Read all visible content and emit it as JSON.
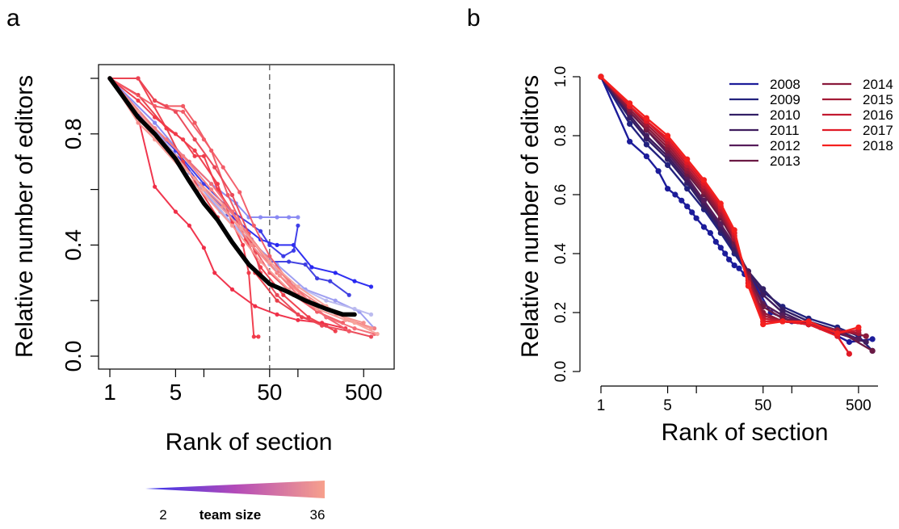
{
  "chart_data": [
    {
      "panel_label": "a",
      "type": "line",
      "xlabel": "Rank of section",
      "ylabel": "Relative number of editors",
      "x_scale": "log",
      "xlim": [
        1,
        800
      ],
      "ylim": [
        0,
        1
      ],
      "x_ticks": [
        1,
        5,
        50,
        500
      ],
      "x_minor_ticks": [
        10,
        100
      ],
      "y_ticks": [
        0.0,
        0.4,
        0.8
      ],
      "y_minor_ticks": [
        0.2,
        0.6,
        1.0
      ],
      "x_tick_labels": [
        "1",
        "5",
        "50",
        "500"
      ],
      "y_tick_labels": [
        "0.0",
        "0.4",
        "0.8"
      ],
      "reference_line": {
        "x": 50,
        "style": "dashed",
        "color": "#555555"
      },
      "grid": false,
      "colorbar": {
        "label": "team size",
        "min_label": "2",
        "max_label": "36",
        "min_color": "#3333ee",
        "mid_color": "#b34ab8",
        "max_color": "#f7a08c"
      },
      "average": {
        "color": "#000000",
        "x": [
          1,
          2,
          3,
          5,
          7,
          10,
          14,
          20,
          30,
          50,
          80,
          120,
          200,
          300,
          400
        ],
        "y": [
          1.0,
          0.86,
          0.8,
          0.71,
          0.63,
          0.55,
          0.49,
          0.41,
          0.33,
          0.26,
          0.23,
          0.2,
          0.17,
          0.15,
          0.15
        ]
      },
      "series": [
        {
          "team_size": 2,
          "color": "#2525f0",
          "x": [
            1,
            3,
            6,
            10,
            20,
            40,
            60,
            90,
            140,
            250,
            400,
            600
          ],
          "y": [
            1.0,
            0.8,
            0.7,
            0.6,
            0.5,
            0.42,
            0.4,
            0.4,
            0.32,
            0.3,
            0.27,
            0.25
          ]
        },
        {
          "team_size": 3,
          "color": "#8888f2",
          "x": [
            1,
            3,
            6,
            12,
            22,
            30,
            40,
            60,
            80,
            100
          ],
          "y": [
            1.0,
            0.84,
            0.72,
            0.62,
            0.55,
            0.5,
            0.5,
            0.5,
            0.5,
            0.5
          ]
        },
        {
          "team_size": 4,
          "color": "#3838e8",
          "x": [
            1,
            3,
            5,
            10,
            20,
            40,
            50,
            70,
            90,
            100
          ],
          "y": [
            1.0,
            0.82,
            0.74,
            0.62,
            0.52,
            0.45,
            0.4,
            0.36,
            0.38,
            0.47
          ]
        },
        {
          "team_size": 5,
          "color": "#3a3ae0",
          "x": [
            1,
            4,
            9,
            18,
            32,
            50,
            80,
            120,
            160,
            220,
            350
          ],
          "y": [
            1.0,
            0.76,
            0.62,
            0.51,
            0.42,
            0.34,
            0.34,
            0.33,
            0.28,
            0.27,
            0.22
          ]
        },
        {
          "team_size": 6,
          "color": "#9a9af0",
          "x": [
            1,
            3,
            7,
            15,
            30,
            60,
            120,
            250,
            450,
            650
          ],
          "y": [
            1.0,
            0.82,
            0.66,
            0.52,
            0.42,
            0.33,
            0.24,
            0.2,
            0.16,
            0.1
          ]
        },
        {
          "team_size": 8,
          "color": "#b8b8ee",
          "x": [
            1,
            4,
            10,
            22,
            50,
            100,
            200,
            400,
            600
          ],
          "y": [
            1.0,
            0.76,
            0.6,
            0.46,
            0.33,
            0.25,
            0.2,
            0.17,
            0.15
          ]
        },
        {
          "team_size": 14,
          "color": "#ef2b45",
          "x": [
            1,
            2,
            3,
            5,
            7,
            10,
            13,
            20,
            35,
            60,
            100,
            180,
            320
          ],
          "y": [
            1.0,
            0.86,
            0.61,
            0.52,
            0.47,
            0.39,
            0.3,
            0.24,
            0.18,
            0.15,
            0.13,
            0.12,
            0.1
          ]
        },
        {
          "team_size": 16,
          "color": "#e83a46",
          "x": [
            1,
            2,
            4,
            6,
            9,
            14,
            22,
            35,
            60,
            110,
            200
          ],
          "y": [
            1.0,
            0.94,
            0.82,
            0.7,
            0.6,
            0.5,
            0.39,
            0.3,
            0.2,
            0.14,
            0.11
          ]
        },
        {
          "team_size": 18,
          "color": "#f05560",
          "x": [
            1,
            2,
            3,
            4,
            6,
            8,
            12,
            18,
            30,
            50,
            90,
            160,
            300
          ],
          "y": [
            1.0,
            1.0,
            0.92,
            0.9,
            0.9,
            0.84,
            0.74,
            0.58,
            0.42,
            0.3,
            0.22,
            0.16,
            0.12
          ]
        },
        {
          "team_size": 20,
          "color": "#ef3a48",
          "x": [
            1,
            2,
            4,
            6,
            8,
            10,
            14,
            20,
            28,
            40,
            70,
            130,
            250
          ],
          "y": [
            1.0,
            1.0,
            0.82,
            0.78,
            0.72,
            0.72,
            0.6,
            0.52,
            0.42,
            0.32,
            0.22,
            0.14,
            0.09
          ]
        },
        {
          "team_size": 22,
          "color": "#ea4454",
          "x": [
            1,
            2,
            3,
            5,
            8,
            13,
            20,
            30,
            35,
            40,
            60,
            100,
            180,
            350,
            600
          ],
          "y": [
            1.0,
            1.0,
            0.92,
            0.88,
            0.78,
            0.68,
            0.58,
            0.44,
            0.37,
            0.3,
            0.22,
            0.15,
            0.11,
            0.09,
            0.07
          ]
        },
        {
          "team_size": 24,
          "color": "#f03848",
          "x": [
            1,
            2,
            3,
            5,
            8,
            14,
            20,
            26,
            30,
            34,
            38
          ],
          "y": [
            1.0,
            0.92,
            0.86,
            0.8,
            0.74,
            0.62,
            0.48,
            0.4,
            0.3,
            0.07,
            0.07
          ]
        },
        {
          "team_size": 26,
          "color": "#f25a66",
          "x": [
            1,
            3,
            6,
            10,
            16,
            24,
            34,
            50,
            80,
            130,
            200,
            350
          ],
          "y": [
            1.0,
            0.9,
            0.88,
            0.78,
            0.68,
            0.59,
            0.47,
            0.36,
            0.27,
            0.2,
            0.14,
            0.09
          ]
        },
        {
          "team_size": 28,
          "color": "#f36b75",
          "x": [
            1,
            2,
            4,
            7,
            12,
            20,
            35,
            60,
            100,
            200,
            400,
            650
          ],
          "y": [
            1.0,
            0.88,
            0.78,
            0.7,
            0.62,
            0.52,
            0.4,
            0.3,
            0.22,
            0.14,
            0.1,
            0.08
          ]
        },
        {
          "team_size": 30,
          "color": "#f47e80",
          "x": [
            1,
            3,
            6,
            12,
            24,
            45,
            90,
            180,
            350,
            650
          ],
          "y": [
            1.0,
            0.82,
            0.72,
            0.6,
            0.48,
            0.36,
            0.25,
            0.18,
            0.13,
            0.1
          ]
        },
        {
          "team_size": 32,
          "color": "#f58c8a",
          "x": [
            1,
            2,
            4,
            8,
            16,
            32,
            64,
            128,
            256,
            500
          ],
          "y": [
            1.0,
            0.84,
            0.74,
            0.64,
            0.54,
            0.4,
            0.29,
            0.2,
            0.15,
            0.12
          ]
        },
        {
          "team_size": 34,
          "color": "#f79a95",
          "x": [
            1,
            3,
            9,
            20,
            40,
            80,
            160,
            320,
            600
          ],
          "y": [
            1.0,
            0.78,
            0.6,
            0.47,
            0.34,
            0.24,
            0.17,
            0.13,
            0.1
          ]
        },
        {
          "team_size": 36,
          "color": "#f7a39b",
          "x": [
            1,
            2,
            5,
            10,
            25,
            50,
            100,
            200,
            400,
            700
          ],
          "y": [
            1.0,
            0.88,
            0.72,
            0.6,
            0.46,
            0.34,
            0.25,
            0.18,
            0.12,
            0.08
          ]
        }
      ]
    },
    {
      "panel_label": "b",
      "type": "line",
      "xlabel": "Rank of section",
      "ylabel": "Relative number of editors",
      "x_scale": "log",
      "xlim": [
        1,
        800
      ],
      "ylim": [
        0,
        1
      ],
      "x_ticks": [
        1,
        5,
        50,
        500
      ],
      "x_minor_ticks": [
        10,
        100
      ],
      "y_ticks": [
        0.0,
        0.2,
        0.4,
        0.6,
        0.8,
        1.0
      ],
      "x_tick_labels": [
        "1",
        "5",
        "50",
        "500"
      ],
      "y_tick_labels": [
        "0.0",
        "0.2",
        "0.4",
        "0.6",
        "0.8",
        "1.0"
      ],
      "grid": false,
      "legend_position": "top-right",
      "legend_columns": [
        [
          "2008",
          "2009",
          "2010",
          "2011",
          "2012",
          "2013"
        ],
        [
          "2014",
          "2015",
          "2016",
          "2017",
          "2018"
        ]
      ],
      "series": [
        {
          "name": "2008",
          "color": "#1c1c9a",
          "x": [
            1,
            2,
            3,
            4,
            5,
            6,
            7,
            8,
            9,
            10,
            12,
            14,
            16,
            18,
            20,
            22,
            25,
            28,
            32,
            40,
            60,
            100,
            200,
            400,
            700
          ],
          "y": [
            1.0,
            0.78,
            0.73,
            0.68,
            0.62,
            0.6,
            0.58,
            0.56,
            0.54,
            0.52,
            0.49,
            0.47,
            0.44,
            0.42,
            0.4,
            0.38,
            0.36,
            0.35,
            0.33,
            0.3,
            0.2,
            0.17,
            0.15,
            0.1,
            0.11
          ]
        },
        {
          "name": "2009",
          "color": "#22227e",
          "x": [
            1,
            2,
            3,
            5,
            8,
            12,
            18,
            25,
            35,
            50,
            80,
            150,
            300,
            500,
            700
          ],
          "y": [
            1.0,
            0.84,
            0.77,
            0.7,
            0.62,
            0.55,
            0.47,
            0.4,
            0.33,
            0.27,
            0.22,
            0.18,
            0.15,
            0.12,
            0.07
          ]
        },
        {
          "name": "2010",
          "color": "#321f66",
          "x": [
            1,
            2,
            3,
            5,
            8,
            12,
            18,
            25,
            35,
            50,
            80,
            150,
            300,
            500
          ],
          "y": [
            1.0,
            0.86,
            0.79,
            0.72,
            0.64,
            0.56,
            0.48,
            0.41,
            0.34,
            0.28,
            0.21,
            0.17,
            0.14,
            0.11
          ]
        },
        {
          "name": "2011",
          "color": "#3f1c5e",
          "x": [
            1,
            2,
            3,
            5,
            8,
            12,
            18,
            25,
            35,
            50,
            80,
            150,
            300,
            600
          ],
          "y": [
            1.0,
            0.87,
            0.8,
            0.73,
            0.65,
            0.57,
            0.49,
            0.42,
            0.34,
            0.26,
            0.2,
            0.16,
            0.13,
            0.1
          ]
        },
        {
          "name": "2012",
          "color": "#561c5a",
          "x": [
            1,
            2,
            3,
            5,
            8,
            12,
            18,
            25,
            35,
            50,
            80,
            150,
            300,
            500
          ],
          "y": [
            1.0,
            0.88,
            0.82,
            0.74,
            0.66,
            0.58,
            0.5,
            0.43,
            0.33,
            0.23,
            0.19,
            0.16,
            0.13,
            0.11
          ]
        },
        {
          "name": "2013",
          "color": "#6b1a44",
          "x": [
            1,
            2,
            3,
            5,
            8,
            12,
            18,
            25,
            35,
            50,
            80,
            150,
            300,
            700
          ],
          "y": [
            1.0,
            0.88,
            0.82,
            0.75,
            0.67,
            0.6,
            0.52,
            0.44,
            0.33,
            0.22,
            0.18,
            0.16,
            0.14,
            0.07
          ]
        },
        {
          "name": "2014",
          "color": "#8a1a3c",
          "x": [
            1,
            2,
            3,
            5,
            8,
            12,
            18,
            25,
            35,
            50,
            80,
            150,
            300,
            600
          ],
          "y": [
            1.0,
            0.89,
            0.83,
            0.76,
            0.68,
            0.61,
            0.53,
            0.45,
            0.32,
            0.2,
            0.17,
            0.16,
            0.14,
            0.12
          ]
        },
        {
          "name": "2015",
          "color": "#a31a36",
          "x": [
            1,
            2,
            3,
            5,
            8,
            12,
            18,
            25,
            35,
            50,
            80,
            150,
            300,
            500
          ],
          "y": [
            1.0,
            0.9,
            0.84,
            0.77,
            0.69,
            0.62,
            0.54,
            0.45,
            0.31,
            0.19,
            0.17,
            0.16,
            0.14,
            0.13
          ]
        },
        {
          "name": "2016",
          "color": "#c21a30",
          "x": [
            1,
            2,
            3,
            5,
            8,
            12,
            18,
            25,
            35,
            50,
            80,
            150,
            300,
            500
          ],
          "y": [
            1.0,
            0.9,
            0.85,
            0.78,
            0.7,
            0.63,
            0.55,
            0.46,
            0.3,
            0.18,
            0.17,
            0.16,
            0.13,
            0.14
          ]
        },
        {
          "name": "2017",
          "color": "#e01a26",
          "x": [
            1,
            2,
            3,
            5,
            8,
            12,
            18,
            25,
            35,
            50,
            80,
            150,
            300,
            400
          ],
          "y": [
            1.0,
            0.9,
            0.85,
            0.79,
            0.71,
            0.64,
            0.56,
            0.47,
            0.3,
            0.17,
            0.17,
            0.16,
            0.12,
            0.06
          ]
        },
        {
          "name": "2018",
          "color": "#f5201e",
          "x": [
            1,
            2,
            3,
            5,
            8,
            12,
            18,
            25,
            35,
            50,
            80,
            150,
            300,
            500
          ],
          "y": [
            1.0,
            0.91,
            0.86,
            0.8,
            0.72,
            0.65,
            0.57,
            0.48,
            0.29,
            0.16,
            0.17,
            0.17,
            0.13,
            0.15
          ]
        }
      ]
    }
  ]
}
